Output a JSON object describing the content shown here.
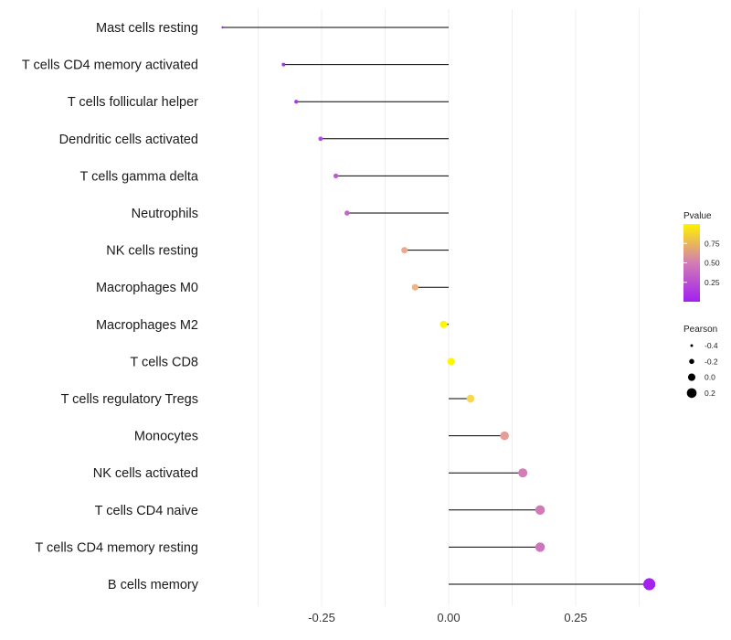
{
  "chart_data": {
    "type": "lollipop",
    "title": "",
    "xlabel": "",
    "ylabel": "",
    "xlim": [
      -0.445,
      0.43
    ],
    "xticks": [
      -0.25,
      0.0,
      0.25
    ],
    "xtick_labels": [
      "-0.25",
      "0.00",
      "0.25"
    ],
    "grid": true,
    "baseline": 0,
    "categories": [
      "Mast cells resting",
      "T cells CD4 memory activated",
      "T cells follicular helper",
      "Dendritic cells activated",
      "T cells gamma delta",
      "Neutrophils",
      "NK cells resting",
      "Macrophages M0",
      "Macrophages M2",
      "T cells CD8",
      "T cells regulatory  Tregs ",
      "Monocytes",
      "NK cells activated",
      "T cells CD4 naive",
      "T cells CD4 memory resting",
      "B cells memory"
    ],
    "values": [
      -0.445,
      -0.325,
      -0.3,
      -0.252,
      -0.222,
      -0.2,
      -0.087,
      -0.066,
      -0.01,
      0.005,
      0.043,
      0.11,
      0.146,
      0.18,
      0.18,
      0.395
    ],
    "pvalues": [
      0.02,
      0.1,
      0.12,
      0.2,
      0.3,
      0.38,
      0.75,
      0.8,
      0.99,
      0.99,
      0.92,
      0.65,
      0.45,
      0.4,
      0.38,
      0.05
    ],
    "pointColors": [
      "#a020f0",
      "#a72ff0",
      "#ad35ed",
      "#b845e5",
      "#c257d8",
      "#c763cf",
      "#eeaa8b",
      "#f1b481",
      "#fcf700",
      "#fcf700",
      "#f6d74f",
      "#e69c98",
      "#d37cb5",
      "#d17ab8",
      "#cf75bb",
      "#a423ef"
    ],
    "legend": {
      "color": {
        "title": "Pvalue",
        "ticks": [
          "0.75",
          "0.50",
          "0.25"
        ],
        "tick_values": [
          0.75,
          0.5,
          0.25
        ],
        "range": [
          0.0,
          1.0
        ],
        "low_color": "#a020f0",
        "mid_color": "#d37cb5",
        "high_color": "#fff200"
      },
      "size": {
        "title": "Pearson",
        "labels": [
          "-0.4",
          "-0.2",
          "0.0",
          "0.2"
        ]
      },
      "position": "right"
    },
    "colors": {
      "segment": "#000000",
      "grid": "#ebebeb"
    }
  }
}
